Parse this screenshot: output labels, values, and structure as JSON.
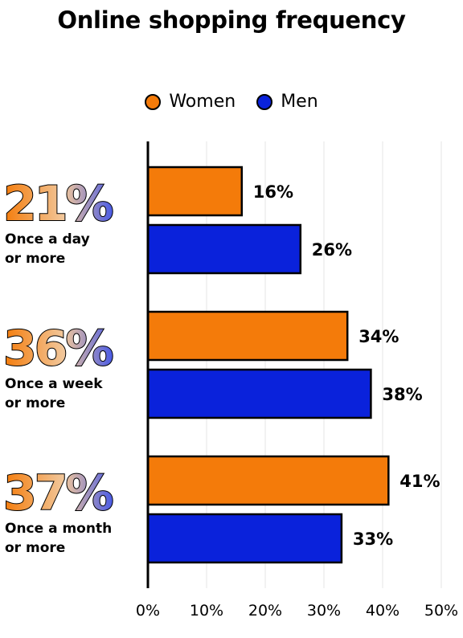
{
  "chart_data": {
    "type": "bar",
    "orientation": "horizontal",
    "title": "Online shopping frequency",
    "categories": [
      {
        "total": "21%",
        "label_line1": "Once a day",
        "label_line2": "or more"
      },
      {
        "total": "36%",
        "label_line1": "Once a week",
        "label_line2": "or more"
      },
      {
        "total": "37%",
        "label_line1": "Once a month",
        "label_line2": "or more"
      }
    ],
    "series": [
      {
        "name": "Women",
        "color": "#F47B0A",
        "values": [
          16,
          34,
          41
        ],
        "labels": [
          "16%",
          "34%",
          "41%"
        ]
      },
      {
        "name": "Men",
        "color": "#0A22DB",
        "values": [
          26,
          38,
          33
        ],
        "labels": [
          "26%",
          "38%",
          "33%"
        ]
      }
    ],
    "xlim": [
      0,
      50
    ],
    "xticks": [
      "0%",
      "10%",
      "20%",
      "30%",
      "40%",
      "50%"
    ],
    "grid": true,
    "legend_position": "top-center"
  }
}
